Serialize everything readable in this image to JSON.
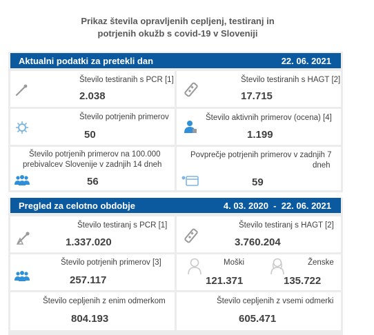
{
  "title": {
    "line1": "Prikaz števila opravljenih cepljenj, testiranj in",
    "line2": "potrjenih okužb s covid-19 v Sloveniji"
  },
  "daily": {
    "header": "Aktualni podatki za pretekli dan",
    "date": "22. 06. 2021",
    "pcr_label": "Število testiranih s PCR [1]",
    "pcr_value": "2.038",
    "hagt_label": "Število testiranih s HAGT [2]",
    "hagt_value": "17.715",
    "confirmed_label": "Število potrjenih primerov",
    "confirmed_value": "50",
    "active_label": "Število aktivnih primerov (ocena) [4]",
    "active_value": "1.199",
    "per100k_label_1": "Število potrjenih primerov na 100.000",
    "per100k_label_2": "prebivalcev Slovenije v zadnjih 14 dneh",
    "per100k_value": "56",
    "avg7_label_1": "Povprečje potrjenih primerov v zadnjih 7",
    "avg7_label_2": "dneh",
    "avg7_value": "59"
  },
  "overall": {
    "header": "Pregled za celotno obdobje",
    "date_range": "4. 03. 2020  -  22. 06. 2021",
    "pcr_label": "Število testiranj s PCR [1]",
    "pcr_value": "1.337.020",
    "hagt_label": "Število testiranj s HAGT [2]",
    "hagt_value": "3.760.204",
    "confirmed_label": "Število potrjenih primerov [3]",
    "confirmed_value": "257.117",
    "male_label": "Moški",
    "male_value": "121.371",
    "female_label": "Ženske",
    "female_value": "135.722",
    "vacc_one_label": "Število cepljenih z enim odmerkom",
    "vacc_one_value": "804.193",
    "vacc_all_label": "Število cepljenih z vsemi odmerki",
    "vacc_all_value": "605.471"
  },
  "colors": {
    "header_bar": "#0b5aa0",
    "panel_bg": "#ececec",
    "icon_blue": "#2f8fd8",
    "icon_grey": "#9a9a9a"
  }
}
